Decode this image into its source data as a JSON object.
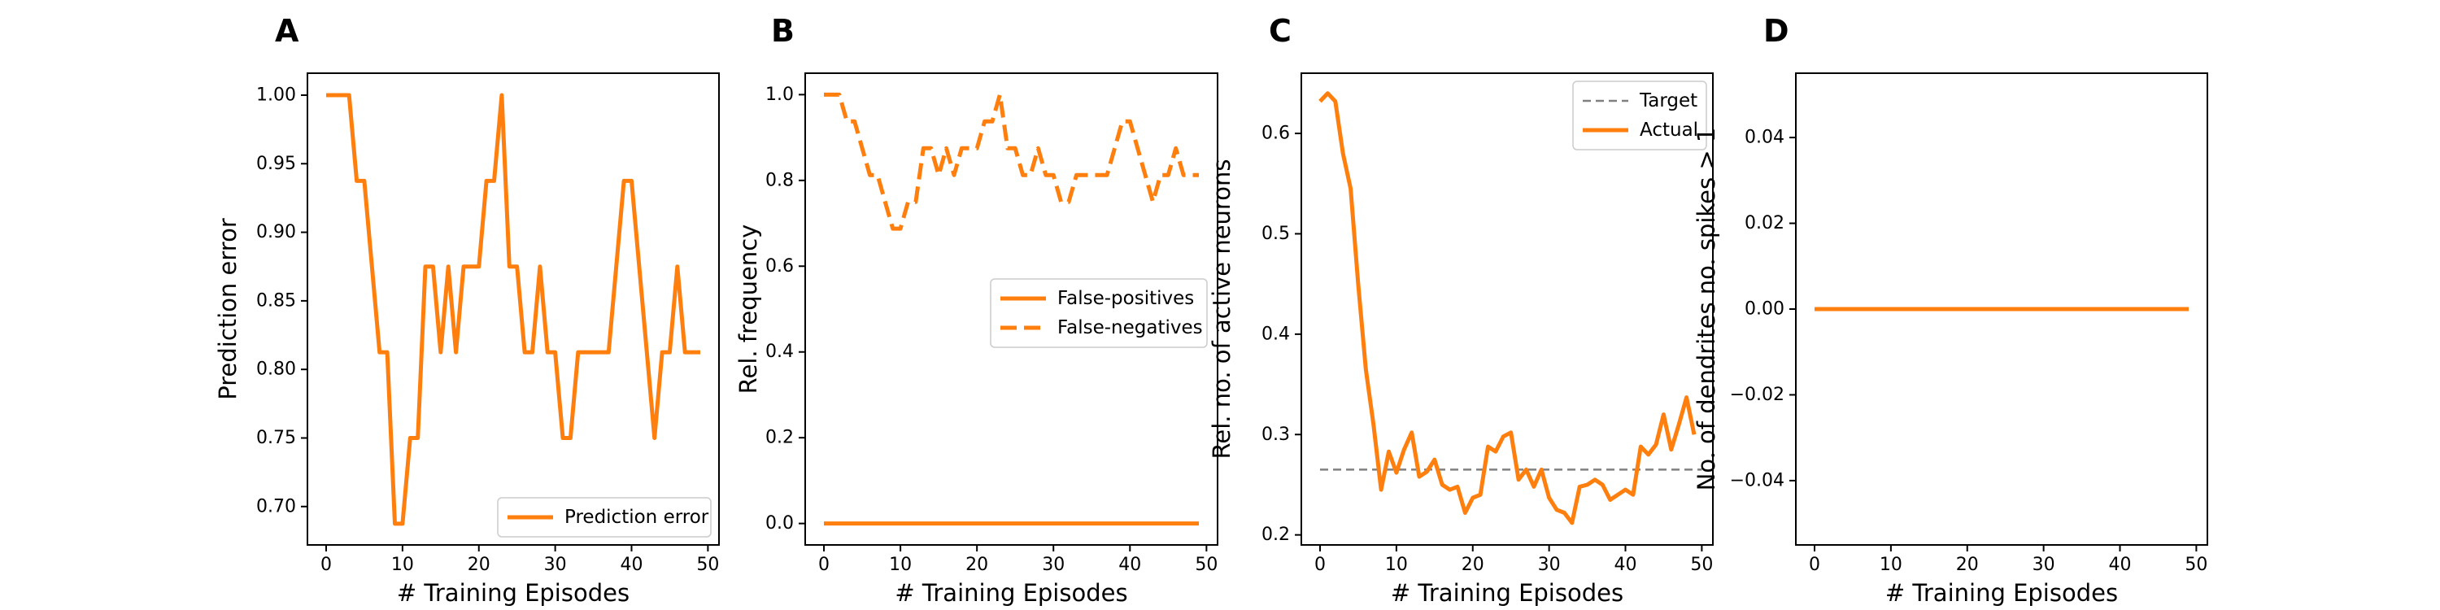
{
  "colors": {
    "orange": "#ff7f0e",
    "gray": "#808080"
  },
  "chart_data": [
    {
      "panel": "A",
      "type": "line",
      "xlabel": "# Training Episodes",
      "ylabel": "Prediction error",
      "xlim": [
        -2.45,
        51.45
      ],
      "ylim": [
        0.672,
        1.016
      ],
      "xticks": [
        0,
        10,
        20,
        30,
        40,
        50
      ],
      "yticks": [
        0.7,
        0.75,
        0.8,
        0.85,
        0.9,
        0.95,
        1.0
      ],
      "ytick_labels": [
        "0.70",
        "0.75",
        "0.80",
        "0.85",
        "0.90",
        "0.95",
        "1.00"
      ],
      "legend": {
        "position": "lower-right"
      },
      "series": [
        {
          "name": "Prediction error",
          "color": "#ff7f0e",
          "dash": "solid",
          "x": [
            0,
            1,
            2,
            3,
            4,
            5,
            6,
            7,
            8,
            9,
            10,
            11,
            12,
            13,
            14,
            15,
            16,
            17,
            18,
            19,
            20,
            21,
            22,
            23,
            24,
            25,
            26,
            27,
            28,
            29,
            30,
            31,
            32,
            33,
            34,
            35,
            36,
            37,
            38,
            39,
            40,
            41,
            42,
            43,
            44,
            45,
            46,
            47,
            48,
            49
          ],
          "y": [
            1.0,
            1.0,
            1.0,
            1.0,
            0.9375,
            0.9375,
            0.875,
            0.8125,
            0.8125,
            0.6875,
            0.6875,
            0.75,
            0.75,
            0.875,
            0.875,
            0.8125,
            0.875,
            0.8125,
            0.875,
            0.875,
            0.875,
            0.9375,
            0.9375,
            1.0,
            0.875,
            0.875,
            0.8125,
            0.8125,
            0.875,
            0.8125,
            0.8125,
            0.75,
            0.75,
            0.8125,
            0.8125,
            0.8125,
            0.8125,
            0.8125,
            0.875,
            0.9375,
            0.9375,
            0.875,
            0.8125,
            0.75,
            0.8125,
            0.8125,
            0.875,
            0.8125,
            0.8125,
            0.8125
          ]
        }
      ]
    },
    {
      "panel": "B",
      "type": "line",
      "xlabel": "# Training Episodes",
      "ylabel": "Rel. frequency",
      "xlim": [
        -2.45,
        51.45
      ],
      "ylim": [
        -0.05,
        1.05
      ],
      "xticks": [
        0,
        10,
        20,
        30,
        40,
        50
      ],
      "yticks": [
        0.0,
        0.2,
        0.4,
        0.6,
        0.8,
        1.0
      ],
      "ytick_labels": [
        "0.0",
        "0.2",
        "0.4",
        "0.6",
        "0.8",
        "1.0"
      ],
      "legend": {
        "position": "center-right"
      },
      "series": [
        {
          "name": "False-positives",
          "color": "#ff7f0e",
          "dash": "solid",
          "x": [
            0,
            49
          ],
          "y": [
            0.0,
            0.0
          ]
        },
        {
          "name": "False-negatives",
          "color": "#ff7f0e",
          "dash": "dashed",
          "x": [
            0,
            1,
            2,
            3,
            4,
            5,
            6,
            7,
            8,
            9,
            10,
            11,
            12,
            13,
            14,
            15,
            16,
            17,
            18,
            19,
            20,
            21,
            22,
            23,
            24,
            25,
            26,
            27,
            28,
            29,
            30,
            31,
            32,
            33,
            34,
            35,
            36,
            37,
            38,
            39,
            40,
            41,
            42,
            43,
            44,
            45,
            46,
            47,
            48,
            49
          ],
          "y": [
            1.0,
            1.0,
            1.0,
            0.9375,
            0.9375,
            0.875,
            0.8125,
            0.8125,
            0.75,
            0.6875,
            0.6875,
            0.75,
            0.75,
            0.875,
            0.875,
            0.8125,
            0.875,
            0.8125,
            0.875,
            0.875,
            0.875,
            0.9375,
            0.9375,
            1.0,
            0.875,
            0.875,
            0.8125,
            0.8125,
            0.875,
            0.8125,
            0.8125,
            0.75,
            0.75,
            0.8125,
            0.8125,
            0.8125,
            0.8125,
            0.8125,
            0.875,
            0.9375,
            0.9375,
            0.875,
            0.8125,
            0.75,
            0.8125,
            0.8125,
            0.875,
            0.8125,
            0.8125,
            0.8125
          ]
        }
      ]
    },
    {
      "panel": "C",
      "type": "line",
      "xlabel": "# Training Episodes",
      "ylabel": "Rel. no. of active neurons",
      "xlim": [
        -2.45,
        51.45
      ],
      "ylim": [
        0.19,
        0.66
      ],
      "xticks": [
        0,
        10,
        20,
        30,
        40,
        50
      ],
      "yticks": [
        0.2,
        0.3,
        0.4,
        0.5,
        0.6
      ],
      "ytick_labels": [
        "0.2",
        "0.3",
        "0.4",
        "0.5",
        "0.6"
      ],
      "legend": {
        "position": "upper-right"
      },
      "series": [
        {
          "name": "Target",
          "color": "#808080",
          "dash": "dashed",
          "x": [
            0,
            50
          ],
          "y": [
            0.265,
            0.265
          ]
        },
        {
          "name": "Actual",
          "color": "#ff7f0e",
          "dash": "solid",
          "x": [
            0,
            1,
            2,
            3,
            4,
            5,
            6,
            7,
            8,
            9,
            10,
            11,
            12,
            13,
            14,
            15,
            16,
            17,
            18,
            19,
            20,
            21,
            22,
            23,
            24,
            25,
            26,
            27,
            28,
            29,
            30,
            31,
            32,
            33,
            34,
            35,
            36,
            37,
            38,
            39,
            40,
            41,
            42,
            43,
            44,
            45,
            46,
            47,
            48,
            49
          ],
          "y": [
            0.632,
            0.64,
            0.632,
            0.58,
            0.545,
            0.45,
            0.365,
            0.31,
            0.245,
            0.283,
            0.262,
            0.285,
            0.302,
            0.258,
            0.263,
            0.275,
            0.25,
            0.245,
            0.248,
            0.222,
            0.237,
            0.24,
            0.288,
            0.283,
            0.298,
            0.302,
            0.255,
            0.265,
            0.248,
            0.265,
            0.237,
            0.225,
            0.222,
            0.212,
            0.248,
            0.25,
            0.255,
            0.25,
            0.235,
            0.24,
            0.245,
            0.24,
            0.288,
            0.28,
            0.29,
            0.32,
            0.285,
            0.31,
            0.337,
            0.3
          ]
        }
      ]
    },
    {
      "panel": "D",
      "type": "line",
      "xlabel": "# Training Episodes",
      "ylabel": "No. of dendrites no. spikes > 1",
      "xlim": [
        -2.45,
        51.45
      ],
      "ylim": [
        -0.055,
        0.055
      ],
      "xticks": [
        0,
        10,
        20,
        30,
        40,
        50
      ],
      "yticks": [
        -0.04,
        -0.02,
        0.0,
        0.02,
        0.04
      ],
      "ytick_labels": [
        "−0.04",
        "−0.02",
        "0.00",
        "0.02",
        "0.04"
      ],
      "legend": null,
      "series": [
        {
          "color": "#ff7f0e",
          "dash": "solid",
          "x": [
            0,
            49
          ],
          "y": [
            0,
            0
          ]
        }
      ]
    }
  ]
}
